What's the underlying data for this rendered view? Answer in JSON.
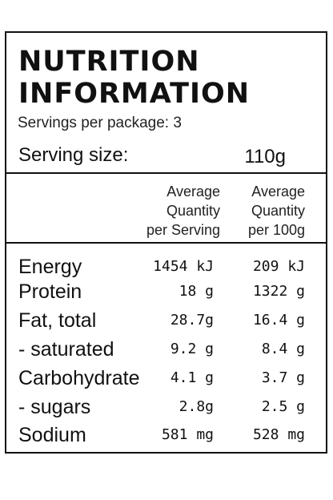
{
  "title_lines": [
    "NUTRITION",
    "INFORMATION"
  ],
  "servings_per_package": "Servings per package: 3",
  "serving_size": {
    "label": "Serving size:",
    "value": "110g"
  },
  "columns": [
    {
      "lines": [
        "Average",
        "Quantity",
        "per Serving"
      ]
    },
    {
      "lines": [
        "Average",
        "Quantity",
        "per 100g"
      ]
    }
  ],
  "rows": [
    {
      "name": "Energy",
      "per_serving": "1454 kJ",
      "per_100g": "209 kJ"
    },
    {
      "name": "Protein",
      "per_serving": "18 g",
      "per_100g": "1322 g"
    },
    {
      "name": "Fat, total",
      "per_serving": "28.7g",
      "per_100g": "16.4 g"
    },
    {
      "name": "- saturated",
      "per_serving": "9.2 g",
      "per_100g": "8.4 g"
    },
    {
      "name": "Carbohydrate",
      "per_serving": "4.1 g",
      "per_100g": "3.7 g"
    },
    {
      "name": "- sugars",
      "per_serving": "2.8g",
      "per_100g": "2.5 g"
    },
    {
      "name": "Sodium",
      "per_serving": "581 mg",
      "per_100g": "528 mg"
    }
  ]
}
